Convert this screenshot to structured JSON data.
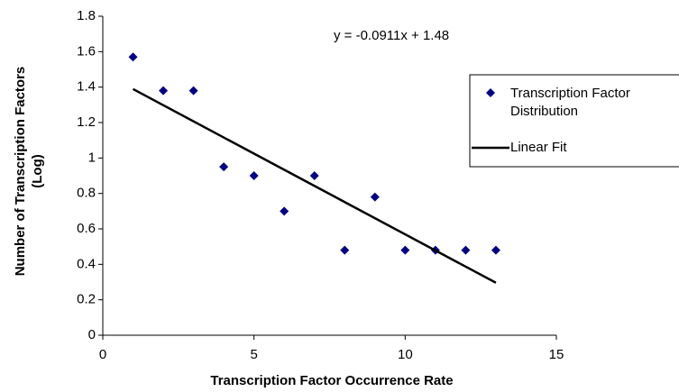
{
  "chart_data": {
    "type": "scatter",
    "xlabel": "Transcription Factor Occurrence Rate",
    "ylabel": "Number of Transcription Factors (Log)",
    "annotation": "y = -0.0911x + 1.48",
    "series": [
      {
        "name": "Transcription Factor Distribution",
        "color": "#000080",
        "x": [
          1,
          2,
          3,
          4,
          5,
          6,
          7,
          8,
          9,
          10,
          11,
          12,
          13
        ],
        "values": [
          1.57,
          1.38,
          1.38,
          0.95,
          0.9,
          0.7,
          0.9,
          0.48,
          0.78,
          0.48,
          0.48,
          0.48,
          0.48
        ]
      },
      {
        "name": "Linear Fit",
        "color": "#000000",
        "x": [
          1,
          13
        ],
        "values": [
          1.389,
          0.296
        ]
      }
    ],
    "xlim": [
      0,
      15
    ],
    "xticks": [
      0,
      5,
      10,
      15
    ],
    "ylim": [
      0,
      1.8
    ],
    "yticks": [
      0,
      0.2,
      0.4,
      0.6,
      0.8,
      1,
      1.2,
      1.4,
      1.6,
      1.8
    ],
    "legend": "right"
  }
}
